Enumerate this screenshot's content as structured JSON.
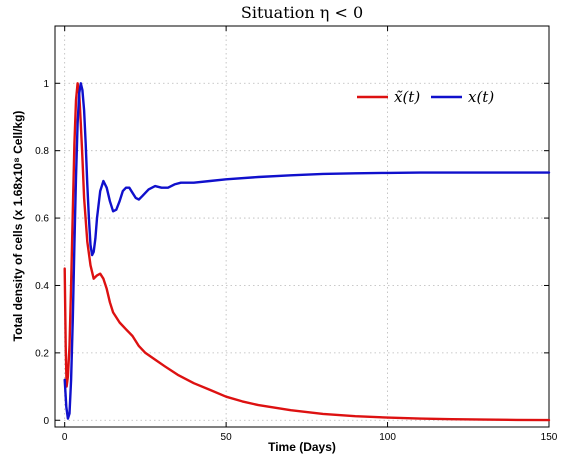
{
  "chart_data": {
    "type": "line",
    "title": "Situation η < 0",
    "xlabel": "Time (Days)",
    "ylabel": "Total density of cells (x  1.68x10⁸ Cell/kg)",
    "xlim": [
      -3,
      150
    ],
    "ylim": [
      -0.02,
      1.17
    ],
    "xticks": [
      0,
      50,
      100,
      150
    ],
    "yticks": [
      0,
      0.2,
      0.4,
      0.6,
      0.8,
      1
    ],
    "grid": true,
    "legend_position": "top-right",
    "series": [
      {
        "name": "x̃(t)",
        "color": "#dd1111",
        "points": [
          [
            0,
            0.45
          ],
          [
            0.3,
            0.22
          ],
          [
            0.6,
            0.1
          ],
          [
            1,
            0.13
          ],
          [
            1.5,
            0.22
          ],
          [
            2,
            0.4
          ],
          [
            2.5,
            0.62
          ],
          [
            3,
            0.82
          ],
          [
            3.5,
            0.95
          ],
          [
            4,
            1.0
          ],
          [
            4.5,
            0.97
          ],
          [
            5,
            0.88
          ],
          [
            5.5,
            0.78
          ],
          [
            6,
            0.66
          ],
          [
            7,
            0.53
          ],
          [
            8,
            0.46
          ],
          [
            9,
            0.42
          ],
          [
            10,
            0.43
          ],
          [
            11,
            0.435
          ],
          [
            12,
            0.42
          ],
          [
            13,
            0.39
          ],
          [
            14,
            0.35
          ],
          [
            15,
            0.32
          ],
          [
            17,
            0.29
          ],
          [
            19,
            0.27
          ],
          [
            21,
            0.25
          ],
          [
            23,
            0.22
          ],
          [
            25,
            0.2
          ],
          [
            28,
            0.18
          ],
          [
            31,
            0.16
          ],
          [
            35,
            0.135
          ],
          [
            40,
            0.11
          ],
          [
            45,
            0.09
          ],
          [
            50,
            0.07
          ],
          [
            55,
            0.056
          ],
          [
            60,
            0.045
          ],
          [
            70,
            0.03
          ],
          [
            80,
            0.019
          ],
          [
            90,
            0.012
          ],
          [
            100,
            0.008
          ],
          [
            110,
            0.005
          ],
          [
            120,
            0.003
          ],
          [
            130,
            0.002
          ],
          [
            140,
            0.001
          ],
          [
            150,
            0.0005
          ]
        ]
      },
      {
        "name": "x(t)",
        "color": "#1010cc",
        "points": [
          [
            0,
            0.12
          ],
          [
            0.5,
            0.04
          ],
          [
            1,
            0.005
          ],
          [
            1.5,
            0.02
          ],
          [
            2,
            0.12
          ],
          [
            2.5,
            0.3
          ],
          [
            3,
            0.52
          ],
          [
            3.5,
            0.72
          ],
          [
            4,
            0.88
          ],
          [
            4.5,
            0.97
          ],
          [
            5,
            1.0
          ],
          [
            5.5,
            0.98
          ],
          [
            6,
            0.92
          ],
          [
            6.5,
            0.82
          ],
          [
            7,
            0.7
          ],
          [
            7.5,
            0.6
          ],
          [
            8,
            0.52
          ],
          [
            8.5,
            0.49
          ],
          [
            9,
            0.5
          ],
          [
            9.5,
            0.54
          ],
          [
            10,
            0.6
          ],
          [
            11,
            0.68
          ],
          [
            12,
            0.71
          ],
          [
            13,
            0.69
          ],
          [
            14,
            0.65
          ],
          [
            15,
            0.62
          ],
          [
            16,
            0.625
          ],
          [
            17,
            0.65
          ],
          [
            18,
            0.68
          ],
          [
            19,
            0.69
          ],
          [
            20,
            0.69
          ],
          [
            21,
            0.675
          ],
          [
            22,
            0.66
          ],
          [
            23,
            0.655
          ],
          [
            24,
            0.665
          ],
          [
            26,
            0.685
          ],
          [
            28,
            0.695
          ],
          [
            30,
            0.69
          ],
          [
            32,
            0.69
          ],
          [
            34,
            0.7
          ],
          [
            36,
            0.705
          ],
          [
            40,
            0.705
          ],
          [
            45,
            0.71
          ],
          [
            50,
            0.715
          ],
          [
            60,
            0.722
          ],
          [
            70,
            0.727
          ],
          [
            80,
            0.731
          ],
          [
            90,
            0.733
          ],
          [
            100,
            0.734
          ],
          [
            110,
            0.735
          ],
          [
            120,
            0.735
          ],
          [
            130,
            0.735
          ],
          [
            140,
            0.735
          ],
          [
            150,
            0.735
          ]
        ]
      }
    ]
  }
}
